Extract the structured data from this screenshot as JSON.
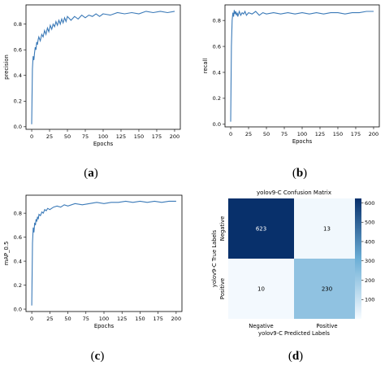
{
  "panels": {
    "a": {
      "caption_open": "(",
      "caption_letter": "a",
      "caption_close": ")"
    },
    "b": {
      "caption_open": "(",
      "caption_letter": "b",
      "caption_close": ")"
    },
    "c": {
      "caption_open": "(",
      "caption_letter": "c",
      "caption_close": ")"
    },
    "d": {
      "caption_open": "(",
      "caption_letter": "d",
      "caption_close": ")"
    }
  },
  "colors": {
    "line": "#3b7ab8",
    "matrix_dark": "#08306b",
    "matrix_light": "#f7fbff"
  },
  "chart_data": [
    {
      "type": "line",
      "xlabel": "Epochs",
      "ylabel": "precision",
      "xlim": [
        -8,
        208
      ],
      "ylim": [
        -0.02,
        0.95
      ],
      "xticks": [
        0,
        25,
        50,
        75,
        100,
        125,
        150,
        175,
        200
      ],
      "yticks": [
        0.0,
        0.2,
        0.4,
        0.6,
        0.8
      ],
      "series": [
        {
          "values": [
            [
              0,
              0.02
            ],
            [
              1,
              0.45
            ],
            [
              2,
              0.55
            ],
            [
              3,
              0.52
            ],
            [
              4,
              0.58
            ],
            [
              5,
              0.62
            ],
            [
              6,
              0.6
            ],
            [
              7,
              0.66
            ],
            [
              8,
              0.64
            ],
            [
              9,
              0.68
            ],
            [
              10,
              0.7
            ],
            [
              12,
              0.67
            ],
            [
              14,
              0.72
            ],
            [
              16,
              0.7
            ],
            [
              18,
              0.75
            ],
            [
              20,
              0.72
            ],
            [
              22,
              0.77
            ],
            [
              24,
              0.74
            ],
            [
              26,
              0.79
            ],
            [
              28,
              0.76
            ],
            [
              30,
              0.8
            ],
            [
              32,
              0.78
            ],
            [
              34,
              0.82
            ],
            [
              36,
              0.79
            ],
            [
              38,
              0.83
            ],
            [
              40,
              0.8
            ],
            [
              42,
              0.84
            ],
            [
              44,
              0.81
            ],
            [
              46,
              0.85
            ],
            [
              48,
              0.82
            ],
            [
              50,
              0.86
            ],
            [
              55,
              0.83
            ],
            [
              60,
              0.86
            ],
            [
              65,
              0.84
            ],
            [
              70,
              0.87
            ],
            [
              75,
              0.85
            ],
            [
              80,
              0.87
            ],
            [
              85,
              0.86
            ],
            [
              90,
              0.88
            ],
            [
              95,
              0.86
            ],
            [
              100,
              0.88
            ],
            [
              110,
              0.87
            ],
            [
              120,
              0.89
            ],
            [
              130,
              0.88
            ],
            [
              140,
              0.89
            ],
            [
              150,
              0.88
            ],
            [
              160,
              0.9
            ],
            [
              170,
              0.89
            ],
            [
              180,
              0.9
            ],
            [
              190,
              0.89
            ],
            [
              200,
              0.9
            ]
          ]
        }
      ]
    },
    {
      "type": "line",
      "xlabel": "Epochs",
      "ylabel": "recall",
      "xlim": [
        -8,
        208
      ],
      "ylim": [
        -0.02,
        0.92
      ],
      "xticks": [
        0,
        25,
        50,
        75,
        100,
        125,
        150,
        175,
        200
      ],
      "yticks": [
        0.0,
        0.2,
        0.4,
        0.6,
        0.8
      ],
      "series": [
        {
          "values": [
            [
              0,
              0.02
            ],
            [
              1,
              0.6
            ],
            [
              2,
              0.8
            ],
            [
              3,
              0.86
            ],
            [
              4,
              0.83
            ],
            [
              5,
              0.88
            ],
            [
              6,
              0.85
            ],
            [
              7,
              0.87
            ],
            [
              8,
              0.84
            ],
            [
              9,
              0.86
            ],
            [
              10,
              0.83
            ],
            [
              12,
              0.87
            ],
            [
              14,
              0.84
            ],
            [
              16,
              0.86
            ],
            [
              18,
              0.85
            ],
            [
              20,
              0.87
            ],
            [
              22,
              0.84
            ],
            [
              25,
              0.86
            ],
            [
              30,
              0.85
            ],
            [
              35,
              0.87
            ],
            [
              40,
              0.84
            ],
            [
              45,
              0.86
            ],
            [
              50,
              0.85
            ],
            [
              60,
              0.86
            ],
            [
              70,
              0.85
            ],
            [
              80,
              0.86
            ],
            [
              90,
              0.85
            ],
            [
              100,
              0.86
            ],
            [
              110,
              0.85
            ],
            [
              120,
              0.86
            ],
            [
              130,
              0.85
            ],
            [
              140,
              0.86
            ],
            [
              150,
              0.86
            ],
            [
              160,
              0.85
            ],
            [
              170,
              0.86
            ],
            [
              180,
              0.86
            ],
            [
              190,
              0.87
            ],
            [
              200,
              0.87
            ]
          ]
        }
      ]
    },
    {
      "type": "line",
      "xlabel": "Epochs",
      "ylabel": "mAP_0.5",
      "xlim": [
        -8,
        208
      ],
      "ylim": [
        -0.02,
        0.95
      ],
      "xticks": [
        0,
        25,
        50,
        75,
        100,
        125,
        150,
        175,
        200
      ],
      "yticks": [
        0.0,
        0.2,
        0.4,
        0.6,
        0.8
      ],
      "series": [
        {
          "values": [
            [
              0,
              0.03
            ],
            [
              1,
              0.55
            ],
            [
              2,
              0.68
            ],
            [
              3,
              0.64
            ],
            [
              4,
              0.72
            ],
            [
              5,
              0.7
            ],
            [
              6,
              0.75
            ],
            [
              7,
              0.73
            ],
            [
              8,
              0.77
            ],
            [
              9,
              0.75
            ],
            [
              10,
              0.79
            ],
            [
              12,
              0.78
            ],
            [
              14,
              0.81
            ],
            [
              16,
              0.8
            ],
            [
              18,
              0.83
            ],
            [
              20,
              0.82
            ],
            [
              22,
              0.84
            ],
            [
              25,
              0.83
            ],
            [
              30,
              0.85
            ],
            [
              35,
              0.86
            ],
            [
              40,
              0.85
            ],
            [
              45,
              0.87
            ],
            [
              50,
              0.86
            ],
            [
              60,
              0.88
            ],
            [
              70,
              0.87
            ],
            [
              80,
              0.88
            ],
            [
              90,
              0.89
            ],
            [
              100,
              0.88
            ],
            [
              110,
              0.89
            ],
            [
              120,
              0.89
            ],
            [
              130,
              0.9
            ],
            [
              140,
              0.89
            ],
            [
              150,
              0.9
            ],
            [
              160,
              0.89
            ],
            [
              170,
              0.9
            ],
            [
              180,
              0.89
            ],
            [
              190,
              0.9
            ],
            [
              200,
              0.9
            ]
          ]
        }
      ]
    },
    {
      "type": "heatmap",
      "title": "yolov9-C Confusion Matrix",
      "xlabel": "yolov9-C Predicted Labels",
      "ylabel": "yolov9-C True Labels",
      "x_categories": [
        "Negative",
        "Positive"
      ],
      "y_categories": [
        "Negative",
        "Positive"
      ],
      "values": [
        [
          623,
          13
        ],
        [
          10,
          230
        ]
      ],
      "colorbar_range": [
        0,
        623
      ],
      "colorbar_ticks": [
        100,
        200,
        300,
        400,
        500,
        600
      ]
    }
  ]
}
